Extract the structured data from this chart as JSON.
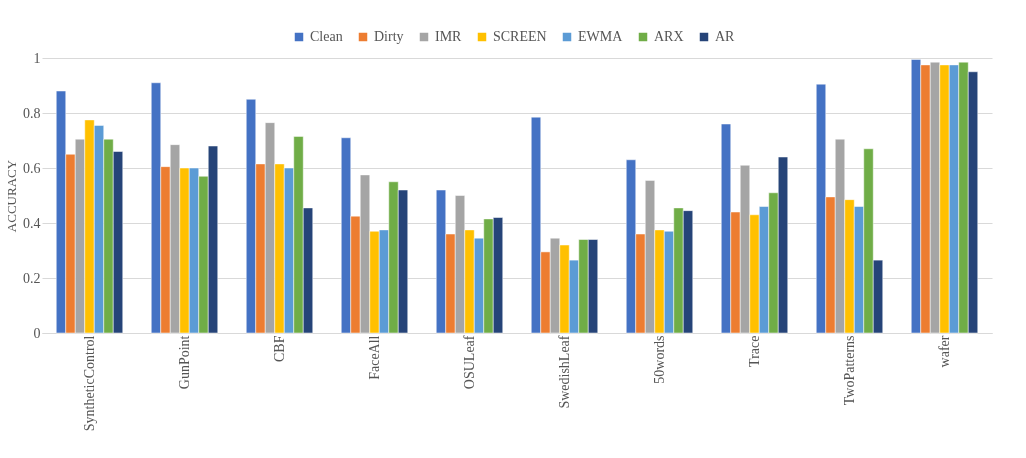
{
  "chart_data": {
    "type": "bar",
    "ylabel": "ACCURACY",
    "categories": [
      "SyntheticControl",
      "GunPoint",
      "CBF",
      "FaceAll",
      "OSULeaf",
      "SwedishLeaf",
      "50words",
      "Trace",
      "TwoPatterns",
      "wafer"
    ],
    "series": [
      {
        "name": "Clean",
        "color": "#4472c4",
        "values": [
          0.88,
          0.91,
          0.85,
          0.71,
          0.52,
          0.785,
          0.63,
          0.76,
          0.905,
          0.995
        ]
      },
      {
        "name": "Dirty",
        "color": "#ed7d31",
        "values": [
          0.65,
          0.605,
          0.615,
          0.425,
          0.36,
          0.295,
          0.36,
          0.44,
          0.495,
          0.975
        ]
      },
      {
        "name": "IMR",
        "color": "#a5a5a5",
        "values": [
          0.705,
          0.685,
          0.765,
          0.575,
          0.5,
          0.345,
          0.555,
          0.61,
          0.705,
          0.985
        ]
      },
      {
        "name": "SCREEN",
        "color": "#ffc000",
        "values": [
          0.775,
          0.6,
          0.615,
          0.37,
          0.375,
          0.32,
          0.375,
          0.43,
          0.485,
          0.975
        ]
      },
      {
        "name": "EWMA",
        "color": "#5b9bd5",
        "values": [
          0.755,
          0.6,
          0.6,
          0.375,
          0.345,
          0.265,
          0.37,
          0.46,
          0.46,
          0.975
        ]
      },
      {
        "name": "ARX",
        "color": "#70ad47",
        "values": [
          0.705,
          0.57,
          0.715,
          0.55,
          0.415,
          0.34,
          0.455,
          0.51,
          0.67,
          0.985
        ]
      },
      {
        "name": "AR",
        "color": "#264478",
        "values": [
          0.66,
          0.68,
          0.455,
          0.52,
          0.42,
          0.34,
          0.445,
          0.64,
          0.265,
          0.95
        ]
      }
    ],
    "ylim": [
      0,
      1
    ],
    "yticks": [
      0,
      0.2,
      0.4,
      0.6,
      0.8,
      1
    ],
    "grid": "y",
    "legend": "top"
  }
}
